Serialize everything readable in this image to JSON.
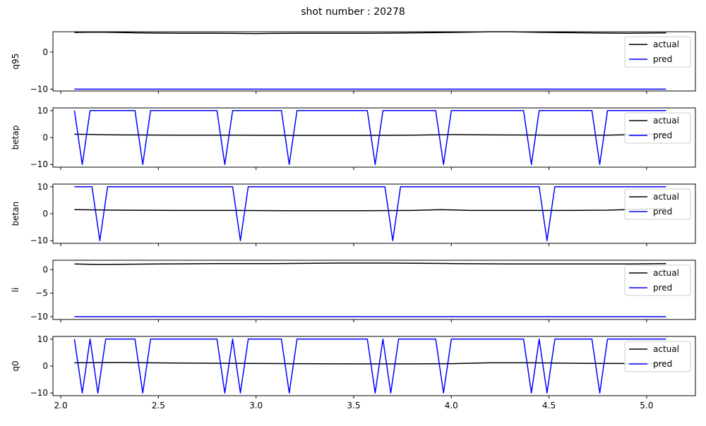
{
  "figure": {
    "title": "shot number : 20278"
  },
  "legend_labels": [
    "actual",
    "pred"
  ],
  "colors": {
    "actual": "#000000",
    "pred": "#0000ff"
  },
  "chart_data": [
    {
      "type": "line",
      "ylabel": "q95",
      "xlim": [
        1.96,
        5.25
      ],
      "ylim": [
        -10.5,
        5.5
      ],
      "yticks": [
        -10,
        0
      ],
      "show_xtick_labels": false,
      "legend": "top-right",
      "series": [
        {
          "name": "actual",
          "x": [
            2.07,
            2.2,
            2.4,
            2.6,
            2.8,
            3.0,
            3.2,
            3.4,
            3.6,
            3.8,
            4.0,
            4.2,
            4.3,
            4.5,
            4.7,
            4.9,
            5.1
          ],
          "y": [
            5.3,
            5.4,
            5.2,
            5.1,
            5.1,
            5.0,
            5.1,
            5.1,
            5.1,
            5.2,
            5.3,
            5.5,
            5.5,
            5.3,
            5.2,
            5.1,
            5.2
          ]
        },
        {
          "name": "pred",
          "x": [
            2.07,
            5.1
          ],
          "y": [
            -10,
            -10
          ]
        }
      ]
    },
    {
      "type": "line",
      "ylabel": "betap",
      "xlim": [
        1.96,
        5.25
      ],
      "ylim": [
        -11,
        11
      ],
      "yticks": [
        -10,
        0,
        10
      ],
      "show_xtick_labels": false,
      "legend": "top-right",
      "series": [
        {
          "name": "actual",
          "x": [
            2.07,
            2.3,
            2.6,
            2.9,
            3.2,
            3.5,
            3.8,
            4.0,
            4.2,
            4.5,
            4.8,
            5.1
          ],
          "y": [
            1.2,
            1.0,
            0.9,
            0.9,
            0.8,
            0.8,
            0.9,
            1.1,
            1.0,
            0.9,
            0.9,
            1.3
          ]
        },
        {
          "name": "pred",
          "x": [
            2.07,
            2.11,
            2.15,
            2.38,
            2.42,
            2.46,
            2.8,
            2.84,
            2.88,
            3.13,
            3.17,
            3.21,
            3.57,
            3.61,
            3.65,
            3.92,
            3.96,
            4.0,
            4.37,
            4.41,
            4.45,
            4.72,
            4.76,
            4.8,
            5.1
          ],
          "y": [
            10,
            -10,
            10,
            10,
            -10,
            10,
            10,
            -10,
            10,
            10,
            -10,
            10,
            10,
            -10,
            10,
            10,
            -10,
            10,
            10,
            -10,
            10,
            10,
            -10,
            10,
            10
          ]
        }
      ]
    },
    {
      "type": "line",
      "ylabel": "betan",
      "xlim": [
        1.96,
        5.25
      ],
      "ylim": [
        -11,
        11
      ],
      "yticks": [
        -10,
        0,
        10
      ],
      "show_xtick_labels": false,
      "legend": "top-right",
      "series": [
        {
          "name": "actual",
          "x": [
            2.07,
            2.3,
            2.6,
            2.9,
            3.2,
            3.5,
            3.8,
            3.95,
            4.1,
            4.4,
            4.6,
            4.8,
            5.1
          ],
          "y": [
            1.5,
            1.3,
            1.2,
            1.2,
            1.1,
            1.1,
            1.2,
            1.5,
            1.2,
            1.2,
            1.2,
            1.3,
            2.0
          ]
        },
        {
          "name": "pred",
          "x": [
            2.07,
            2.16,
            2.2,
            2.24,
            2.88,
            2.92,
            2.96,
            3.66,
            3.7,
            3.74,
            4.45,
            4.49,
            4.53,
            5.1
          ],
          "y": [
            10,
            10,
            -10,
            10,
            10,
            -10,
            10,
            10,
            -10,
            10,
            10,
            -10,
            10,
            10
          ]
        }
      ]
    },
    {
      "type": "line",
      "ylabel": "li",
      "xlim": [
        1.96,
        5.25
      ],
      "ylim": [
        -10.6,
        2
      ],
      "yticks": [
        -10,
        -5,
        0
      ],
      "show_xtick_labels": false,
      "legend": "top-right",
      "series": [
        {
          "name": "actual",
          "x": [
            2.07,
            2.2,
            2.5,
            2.8,
            3.1,
            3.4,
            3.7,
            4.0,
            4.3,
            4.6,
            4.9,
            5.1
          ],
          "y": [
            1.2,
            1.1,
            1.2,
            1.3,
            1.3,
            1.4,
            1.4,
            1.3,
            1.2,
            1.2,
            1.2,
            1.3
          ]
        },
        {
          "name": "pred",
          "x": [
            2.07,
            5.1
          ],
          "y": [
            -10,
            -10
          ]
        }
      ]
    },
    {
      "type": "line",
      "ylabel": "q0",
      "xlim": [
        1.96,
        5.25
      ],
      "ylim": [
        -11,
        11
      ],
      "yticks": [
        -10,
        0,
        10
      ],
      "xticks": [
        2.0,
        2.5,
        3.0,
        3.5,
        4.0,
        4.5,
        5.0
      ],
      "xtick_labels": [
        "2.0",
        "2.5",
        "3.0",
        "3.5",
        "4.0",
        "4.5",
        "5.0"
      ],
      "show_xtick_labels": true,
      "legend": "top-right",
      "series": [
        {
          "name": "actual",
          "x": [
            2.07,
            2.3,
            2.6,
            2.9,
            3.2,
            3.5,
            3.8,
            4.0,
            4.2,
            4.4,
            4.7,
            5.1
          ],
          "y": [
            1.2,
            1.3,
            1.1,
            1.0,
            0.9,
            0.8,
            0.8,
            0.9,
            1.2,
            1.2,
            1.0,
            0.9
          ]
        },
        {
          "name": "pred",
          "x": [
            2.07,
            2.11,
            2.15,
            2.19,
            2.23,
            2.38,
            2.42,
            2.46,
            2.8,
            2.84,
            2.88,
            2.92,
            2.96,
            3.13,
            3.17,
            3.21,
            3.57,
            3.61,
            3.65,
            3.69,
            3.73,
            3.92,
            3.96,
            4.0,
            4.37,
            4.41,
            4.45,
            4.49,
            4.53,
            4.72,
            4.76,
            4.8,
            5.1
          ],
          "y": [
            10,
            -10,
            10,
            -10,
            10,
            10,
            -10,
            10,
            10,
            -10,
            10,
            -10,
            10,
            10,
            -10,
            10,
            10,
            -10,
            10,
            -10,
            10,
            10,
            -10,
            10,
            10,
            -10,
            10,
            -10,
            10,
            10,
            -10,
            10,
            10
          ]
        }
      ]
    }
  ]
}
